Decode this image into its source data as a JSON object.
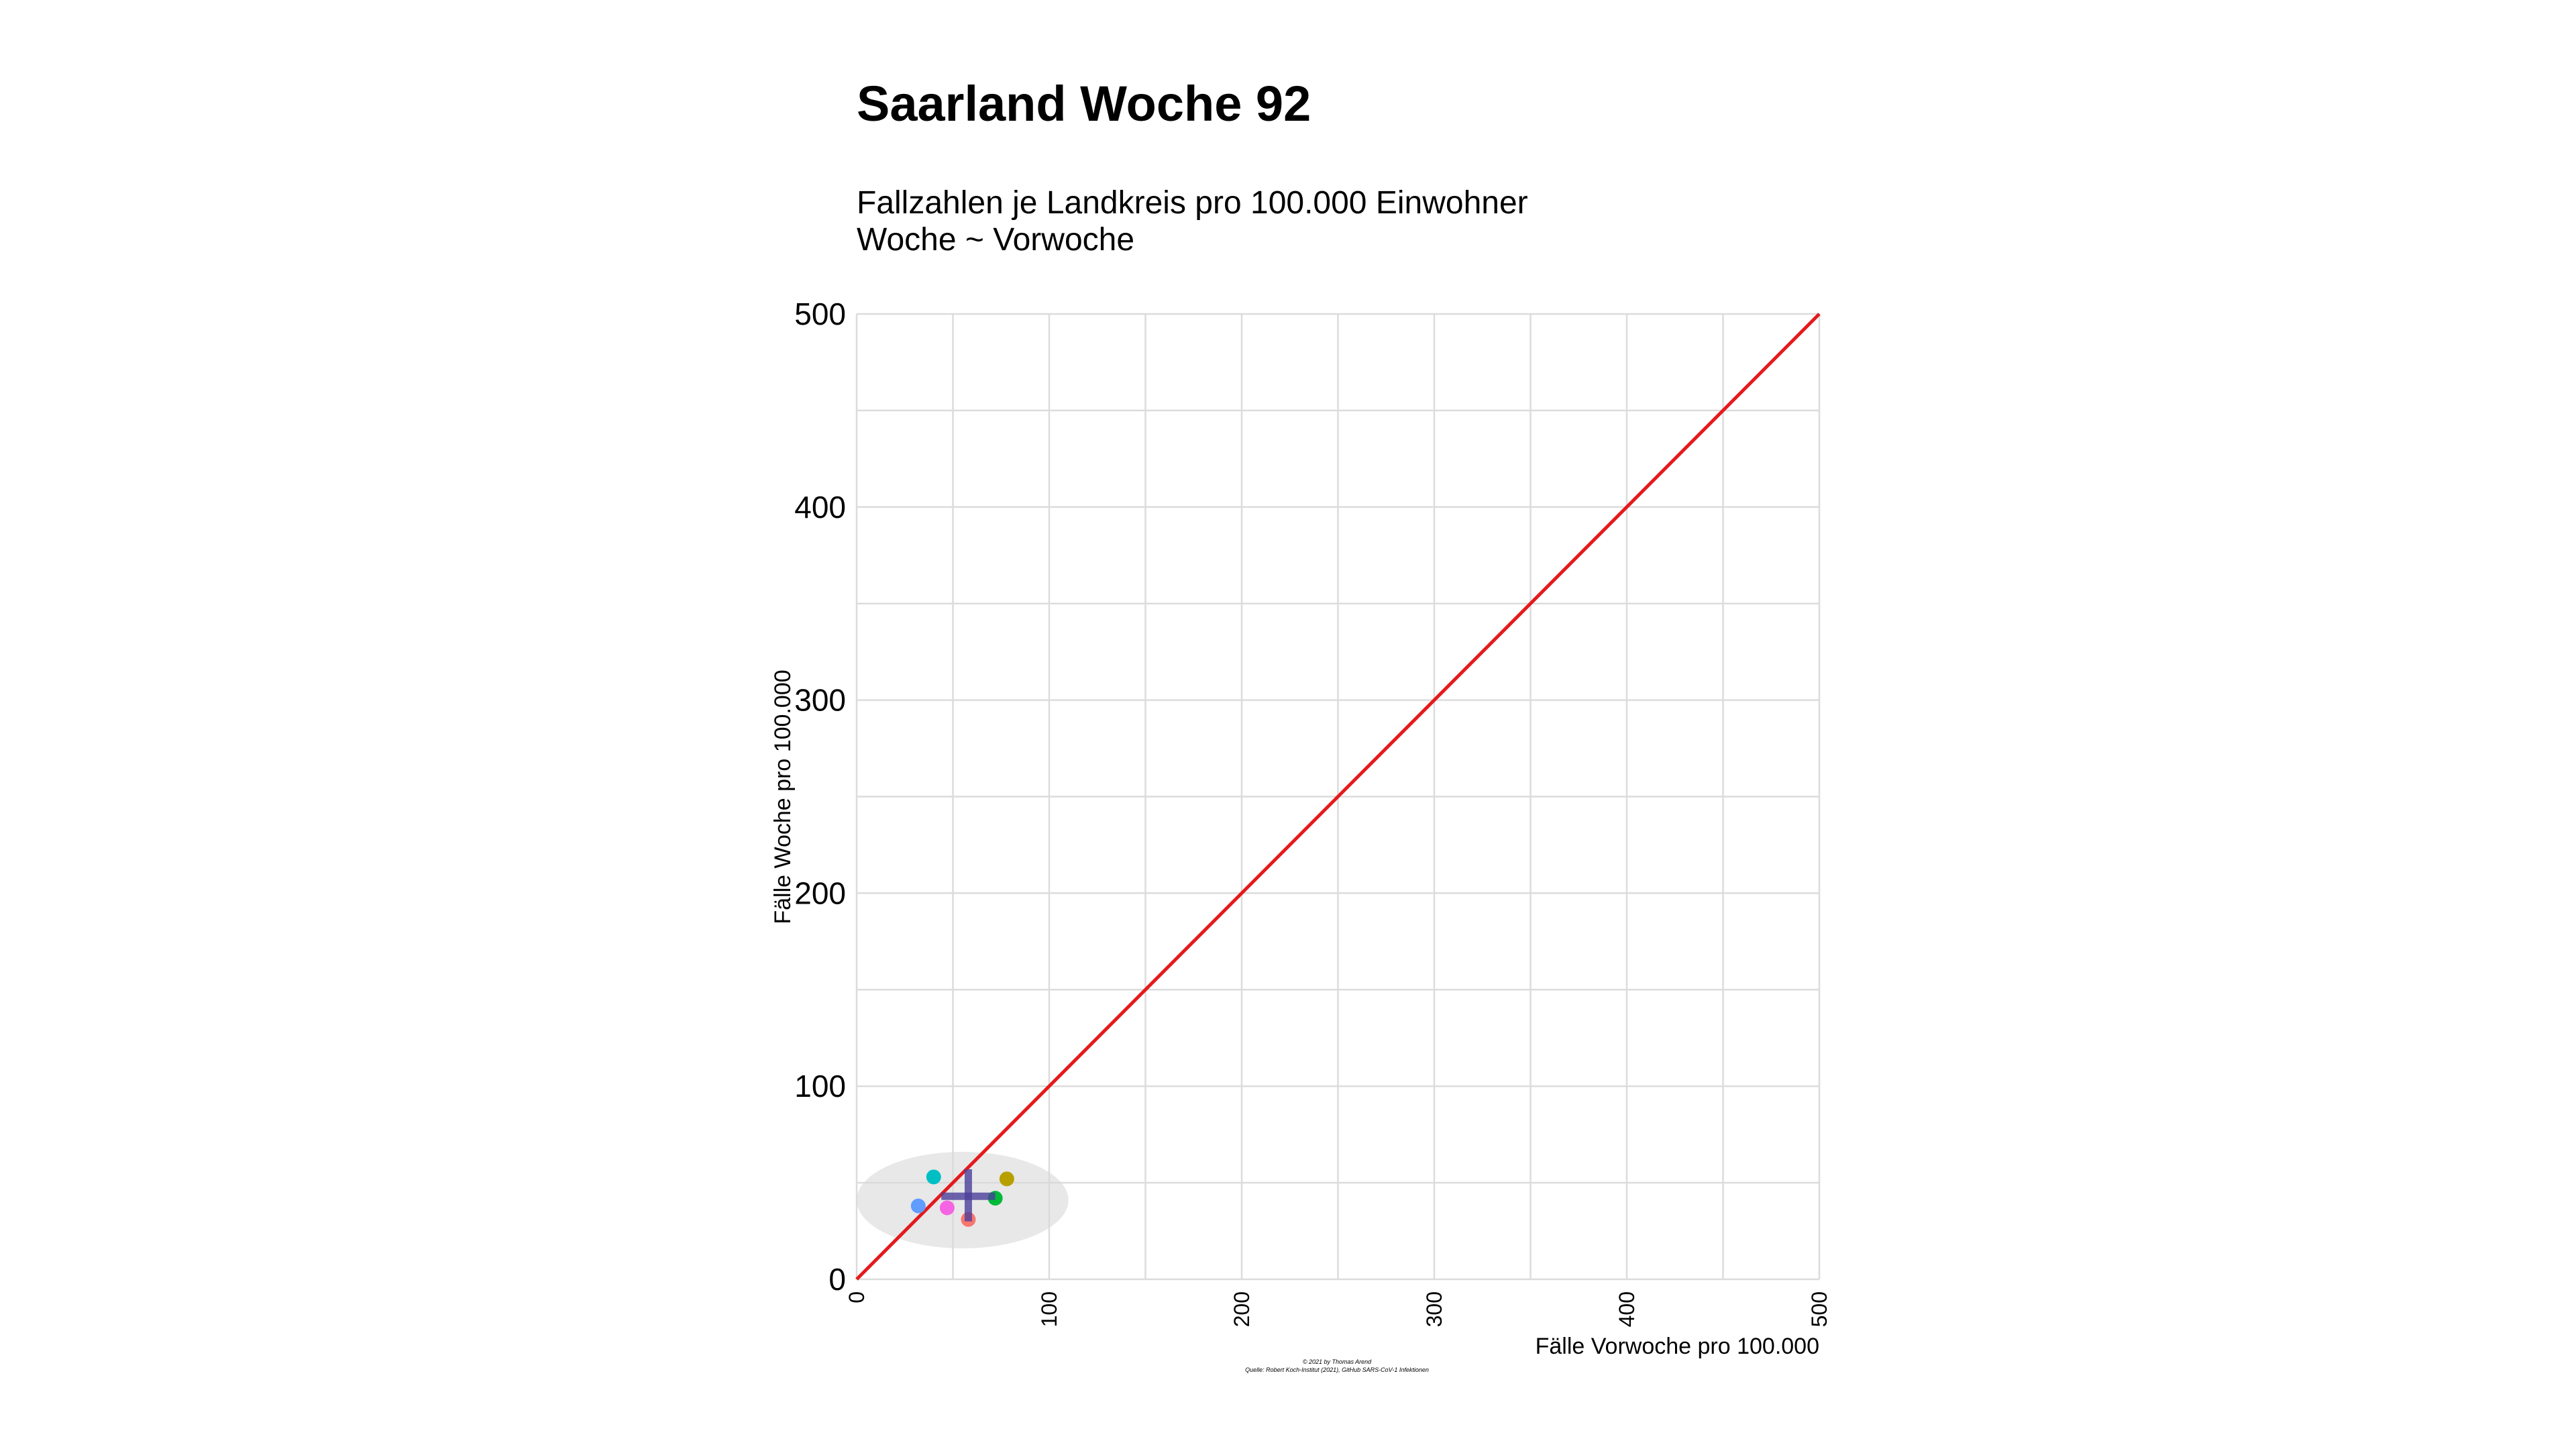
{
  "chart_data": {
    "type": "scatter",
    "title": "Saarland Woche 92",
    "subtitle_lines": [
      "Fallzahlen je Landkreis pro 100.000 Einwohner",
      "Woche ~ Vorwoche"
    ],
    "xlabel": "Fälle Vorwoche pro 100.000",
    "ylabel": "Fälle Woche pro 100.000",
    "xlim": [
      0,
      500
    ],
    "ylim": [
      0,
      500
    ],
    "x_ticks": [
      "0",
      "100",
      "200",
      "300",
      "400",
      "500"
    ],
    "y_ticks": [
      "0",
      "100",
      "200",
      "300",
      "400",
      "500"
    ],
    "grid": true,
    "reference_line": {
      "from": [
        0,
        0
      ],
      "to": [
        500,
        500
      ],
      "color": "#e41a1c"
    },
    "points": [
      {
        "x": 32,
        "y": 38,
        "color": "#619cff"
      },
      {
        "x": 40,
        "y": 53,
        "color": "#00bfc4"
      },
      {
        "x": 47,
        "y": 37,
        "color": "#f564e3"
      },
      {
        "x": 58,
        "y": 31,
        "color": "#f8766d"
      },
      {
        "x": 72,
        "y": 42,
        "color": "#00ba38"
      },
      {
        "x": 78,
        "y": 52,
        "color": "#b79f00"
      }
    ],
    "mean": {
      "x": 58,
      "y": 43,
      "x_range": [
        44,
        72
      ],
      "y_range": [
        30,
        57
      ],
      "color": "#4b3f9a"
    },
    "ellipse": {
      "cx": 55,
      "cy": 41,
      "rx": 55,
      "ry": 25,
      "color": "#d9d9d9"
    },
    "caption_lines": [
      "© 2021 by Thomas Arend",
      "Quelle: Robert Koch-Institut (2021), GitHub SARS-CoV-1 Infektionen"
    ]
  }
}
